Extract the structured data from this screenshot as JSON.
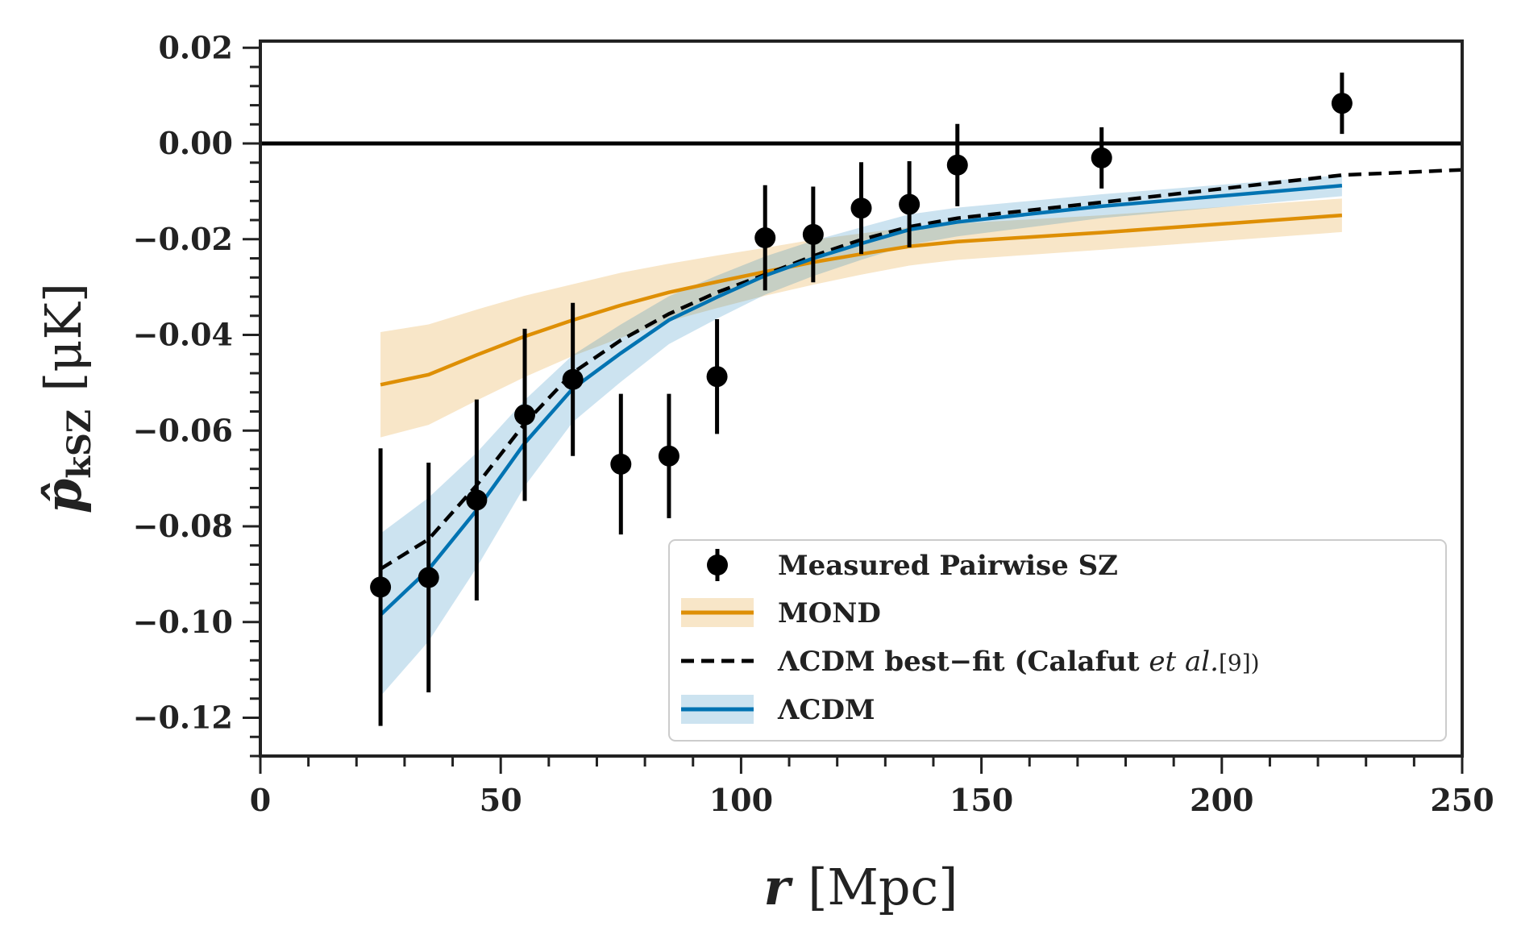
{
  "chart_data": {
    "type": "line",
    "xlabel": "r [Mpc]",
    "xlabel_var": "r",
    "xlabel_unit": "[Mpc]",
    "ylabel": "p̂kSZ [μK]",
    "ylabel_var": "p̂",
    "ylabel_sub": "kSZ",
    "ylabel_unit": "[μK]",
    "xlim": [
      0,
      250
    ],
    "ylim": [
      -0.128,
      0.0214
    ],
    "xticks": [
      0,
      50,
      100,
      150,
      200,
      250
    ],
    "xtick_labels": [
      "0",
      "50",
      "100",
      "150",
      "200",
      "250"
    ],
    "yticks": [
      0.02,
      0.0,
      -0.02,
      -0.04,
      -0.06,
      -0.08,
      -0.1,
      -0.12
    ],
    "ytick_labels": [
      "0.02",
      "0.00",
      "−0.02",
      "−0.04",
      "−0.06",
      "−0.08",
      "−0.10",
      "−0.12"
    ],
    "grid": false,
    "hline": 0.0,
    "legend_position": "bottom-right",
    "legend": [
      "Measured Pairwise SZ",
      "MOND",
      "ΛCDM best−fit (Calafut et al.[9])",
      "ΛCDM"
    ],
    "legend_parts": {
      "bestfit_pre": "ΛCDM best−fit (Calafut ",
      "bestfit_ital": "et al.",
      "bestfit_post": "[9])"
    },
    "measured": {
      "name": "Measured Pairwise SZ",
      "color": "#000000",
      "x": [
        25,
        35,
        45,
        55,
        65,
        75,
        85,
        95,
        105,
        115,
        125,
        135,
        145,
        175,
        225
      ],
      "y": [
        -0.0927,
        -0.0907,
        -0.0745,
        -0.0567,
        -0.0493,
        -0.067,
        -0.0653,
        -0.0487,
        -0.0197,
        -0.019,
        -0.0135,
        -0.0127,
        -0.0045,
        -0.003,
        0.0084
      ],
      "yerr": [
        0.029,
        0.024,
        0.021,
        0.018,
        0.016,
        0.0147,
        0.013,
        0.012,
        0.011,
        0.01,
        0.0096,
        0.009,
        0.0086,
        0.0064,
        0.0064
      ]
    },
    "mond": {
      "name": "MOND",
      "color": "#de8f05",
      "x": [
        25,
        35,
        45,
        55,
        65,
        75,
        85,
        95,
        105,
        115,
        125,
        135,
        145,
        175,
        225
      ],
      "y": [
        -0.0504,
        -0.0483,
        -0.0442,
        -0.0403,
        -0.0369,
        -0.0338,
        -0.0311,
        -0.0289,
        -0.0268,
        -0.0248,
        -0.0231,
        -0.0215,
        -0.0205,
        -0.0186,
        -0.015
      ],
      "band_halfwidth": [
        0.011,
        0.0105,
        0.0095,
        0.0085,
        0.0075,
        0.0068,
        0.006,
        0.0055,
        0.005,
        0.0047,
        0.0043,
        0.004,
        0.0038,
        0.0036,
        0.0035
      ]
    },
    "lcdm_bestfit": {
      "name": "ΛCDM best−fit (Calafut et al.[9])",
      "color": "#000000",
      "x": [
        25,
        35,
        45,
        55,
        65,
        75,
        85,
        95,
        105,
        115,
        125,
        135,
        145,
        175,
        225,
        250
      ],
      "y": [
        -0.0889,
        -0.0827,
        -0.0714,
        -0.0585,
        -0.0479,
        -0.0411,
        -0.0356,
        -0.0311,
        -0.0274,
        -0.0235,
        -0.0201,
        -0.0174,
        -0.0156,
        -0.0123,
        -0.0066,
        -0.0055
      ]
    },
    "lcdm": {
      "name": "ΛCDM",
      "color": "#0173b2",
      "x": [
        25,
        35,
        45,
        55,
        65,
        75,
        85,
        95,
        105,
        115,
        125,
        135,
        145,
        175,
        225
      ],
      "y": [
        -0.0985,
        -0.089,
        -0.0766,
        -0.0626,
        -0.0512,
        -0.0438,
        -0.0369,
        -0.0321,
        -0.0276,
        -0.024,
        -0.0209,
        -0.018,
        -0.0164,
        -0.0131,
        -0.0088
      ],
      "band_halfwidth": [
        0.017,
        0.015,
        0.012,
        0.009,
        0.007,
        0.006,
        0.005,
        0.0045,
        0.004,
        0.0037,
        0.0034,
        0.0032,
        0.003,
        0.0025,
        0.0022
      ]
    }
  }
}
